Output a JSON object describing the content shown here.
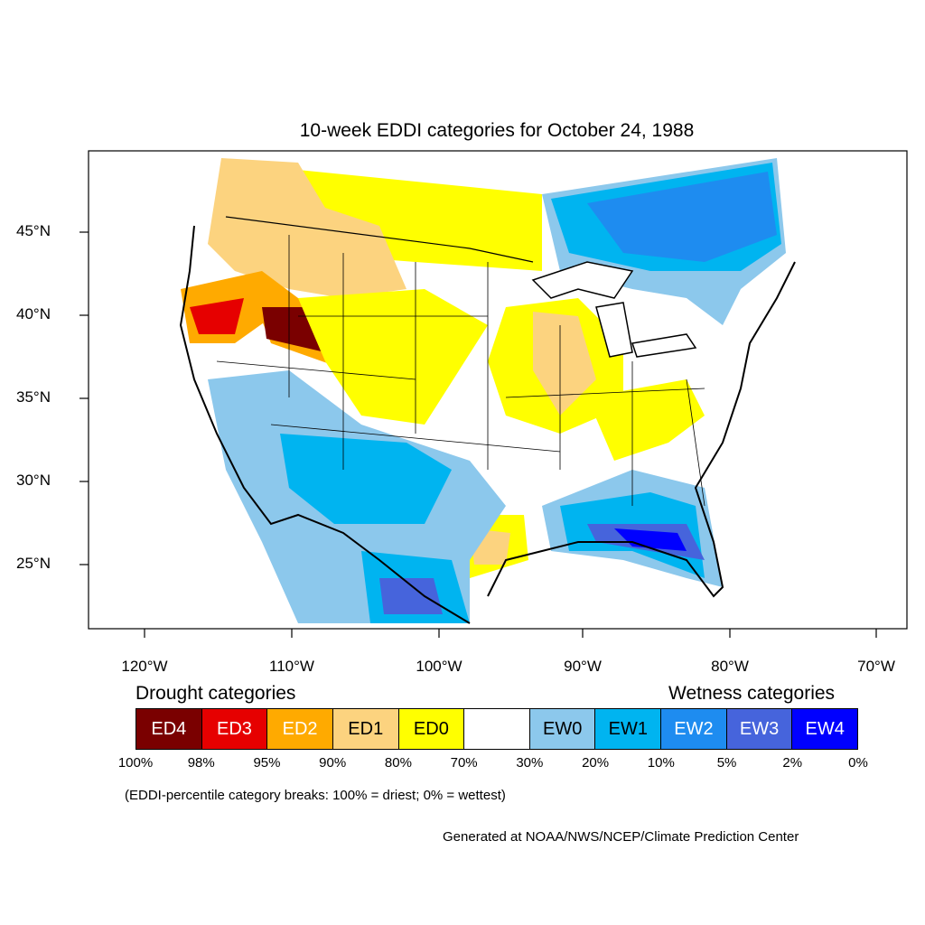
{
  "title": "10-week EDDI categories for October 24, 1988",
  "axes": {
    "y_ticks": [
      "45°N",
      "40°N",
      "35°N",
      "30°N",
      "25°N"
    ],
    "x_ticks": [
      "120°W",
      "110°W",
      "100°W",
      "90°W",
      "80°W",
      "70°W"
    ]
  },
  "legend": {
    "drought_heading": "Drought categories",
    "wetness_heading": "Wetness categories",
    "categories": [
      {
        "label": "ED4",
        "color": "#7a0000",
        "text_color": "#ffffff"
      },
      {
        "label": "ED3",
        "color": "#e60000",
        "text_color": "#ffffff"
      },
      {
        "label": "ED2",
        "color": "#ffaa00",
        "text_color": "#ffffff"
      },
      {
        "label": "ED1",
        "color": "#fcd37f",
        "text_color": "#000000"
      },
      {
        "label": "ED0",
        "color": "#ffff00",
        "text_color": "#000000"
      },
      {
        "label": "",
        "color": "#ffffff",
        "text_color": "#000000"
      },
      {
        "label": "EW0",
        "color": "#8cc8ec",
        "text_color": "#000000"
      },
      {
        "label": "EW1",
        "color": "#00b4f0",
        "text_color": "#000000"
      },
      {
        "label": "EW2",
        "color": "#1e8cf0",
        "text_color": "#ffffff"
      },
      {
        "label": "EW3",
        "color": "#4664dc",
        "text_color": "#ffffff"
      },
      {
        "label": "EW4",
        "color": "#0000ff",
        "text_color": "#ffffff"
      }
    ],
    "breaks": [
      "100%",
      "98%",
      "95%",
      "90%",
      "80%",
      "70%",
      "30%",
      "20%",
      "10%",
      "5%",
      "2%",
      "0%"
    ]
  },
  "note": "(EDDI-percentile category breaks: 100% = driest; 0% = wettest)",
  "credit": "Generated at NOAA/NWS/NCEP/Climate Prediction Center"
}
